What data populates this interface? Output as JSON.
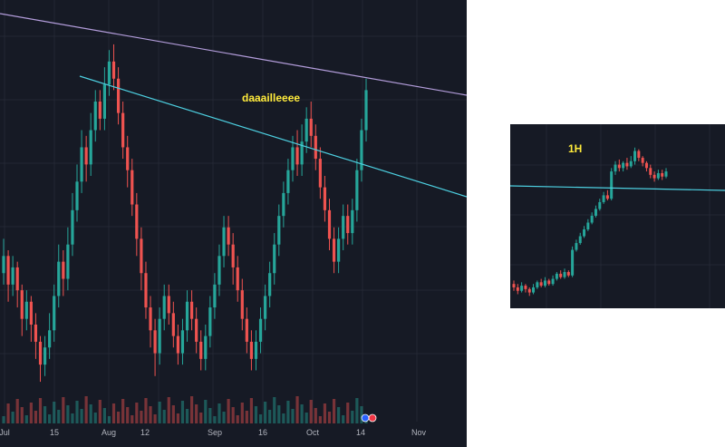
{
  "colors": {
    "background": "#161a25",
    "grid": "#232734",
    "up": "#26a69a",
    "down": "#ef5350",
    "trend_upper": "#b39ddb",
    "trend_lower": "#4dd0e1",
    "annotation": "#ffeb3b",
    "axis_text": "#b2b5be"
  },
  "chart_data": [
    {
      "type": "candlestick",
      "x_tick_labels": [
        "Jul",
        "15",
        "Aug",
        "12",
        "Sep",
        "16",
        "Oct",
        "14",
        "Nov"
      ],
      "annotation": "daaailleeee",
      "grid": true,
      "series": [
        {
          "o": [
            55,
            58
          ],
          "h": [
            52,
            62
          ],
          "l": [
            50,
            65
          ]
        },
        {
          "values": [
            [
              52,
              55,
              50,
              58
            ],
            [
              55,
              50,
              47,
              56
            ],
            [
              50,
              53,
              48,
              55
            ],
            [
              53,
              49,
              46,
              54
            ],
            [
              49,
              44,
              41,
              50
            ],
            [
              44,
              47,
              42,
              49
            ],
            [
              47,
              43,
              40,
              48
            ],
            [
              43,
              40,
              37,
              45
            ],
            [
              40,
              36,
              33,
              41
            ],
            [
              36,
              39,
              34,
              41
            ],
            [
              39,
              42,
              37,
              45
            ],
            [
              42,
              48,
              40,
              50
            ],
            [
              48,
              54,
              46,
              57
            ],
            [
              54,
              51,
              48,
              56
            ],
            [
              51,
              57,
              49,
              60
            ],
            [
              57,
              63,
              55,
              66
            ],
            [
              63,
              68,
              61,
              71
            ],
            [
              68,
              74,
              66,
              77
            ],
            [
              74,
              71,
              68,
              76
            ],
            [
              71,
              77,
              69,
              80
            ],
            [
              77,
              82,
              75,
              84
            ],
            [
              82,
              79,
              77,
              84
            ],
            [
              79,
              85,
              77,
              88
            ],
            [
              85,
              89,
              83,
              91
            ],
            [
              89,
              86,
              84,
              92
            ],
            [
              86,
              80,
              78,
              88
            ],
            [
              80,
              74,
              72,
              82
            ],
            [
              74,
              70,
              67,
              76
            ],
            [
              70,
              64,
              62,
              72
            ],
            [
              64,
              58,
              55,
              66
            ],
            [
              58,
              52,
              49,
              60
            ],
            [
              52,
              46,
              44,
              54
            ],
            [
              46,
              42,
              39,
              48
            ],
            [
              42,
              38,
              34,
              44
            ],
            [
              38,
              44,
              36,
              46
            ],
            [
              44,
              48,
              42,
              50
            ],
            [
              48,
              45,
              43,
              50
            ],
            [
              45,
              41,
              39,
              47
            ],
            [
              41,
              38,
              36,
              43
            ],
            [
              38,
              42,
              36,
              44
            ],
            [
              42,
              47,
              40,
              49
            ],
            [
              47,
              44,
              42,
              49
            ],
            [
              44,
              40,
              38,
              46
            ],
            [
              40,
              37,
              35,
              42
            ],
            [
              37,
              41,
              35,
              43
            ],
            [
              41,
              46,
              39,
              48
            ],
            [
              46,
              50,
              44,
              52
            ],
            [
              50,
              55,
              48,
              57
            ],
            [
              55,
              60,
              53,
              62
            ],
            [
              60,
              57,
              55,
              62
            ],
            [
              57,
              53,
              50,
              59
            ],
            [
              53,
              49,
              47,
              55
            ],
            [
              49,
              44,
              42,
              51
            ],
            [
              44,
              40,
              38,
              46
            ],
            [
              40,
              37,
              35,
              42
            ],
            [
              37,
              40,
              35,
              42
            ],
            [
              40,
              44,
              38,
              46
            ],
            [
              44,
              48,
              42,
              50
            ],
            [
              48,
              52,
              46,
              54
            ],
            [
              52,
              57,
              50,
              59
            ],
            [
              57,
              62,
              55,
              64
            ],
            [
              62,
              66,
              60,
              68
            ],
            [
              66,
              70,
              64,
              72
            ],
            [
              70,
              74,
              68,
              76
            ],
            [
              74,
              71,
              69,
              77
            ],
            [
              71,
              75,
              69,
              78
            ],
            [
              75,
              79,
              73,
              81
            ],
            [
              79,
              76,
              74,
              82
            ],
            [
              76,
              72,
              70,
              78
            ],
            [
              72,
              67,
              65,
              74
            ],
            [
              67,
              63,
              61,
              69
            ],
            [
              63,
              58,
              56,
              65
            ],
            [
              58,
              54,
              52,
              60
            ],
            [
              54,
              58,
              52,
              60
            ],
            [
              58,
              62,
              56,
              64
            ],
            [
              62,
              59,
              57,
              64
            ],
            [
              59,
              63,
              57,
              65
            ],
            [
              63,
              70,
              61,
              72
            ],
            [
              70,
              77,
              68,
              79
            ],
            [
              77,
              84,
              75,
              86
            ]
          ]
        }
      ]
    },
    {
      "type": "candlestick",
      "annotation": "1H",
      "grid": true,
      "values": [
        [
          20,
          18,
          16,
          22
        ],
        [
          18,
          16,
          14,
          20
        ],
        [
          16,
          19,
          15,
          21
        ],
        [
          19,
          17,
          15,
          20
        ],
        [
          17,
          15,
          13,
          18
        ],
        [
          15,
          18,
          14,
          20
        ],
        [
          18,
          21,
          17,
          22
        ],
        [
          21,
          19,
          18,
          23
        ],
        [
          19,
          22,
          18,
          24
        ],
        [
          22,
          20,
          19,
          23
        ],
        [
          20,
          23,
          19,
          25
        ],
        [
          23,
          26,
          22,
          27
        ],
        [
          26,
          24,
          23,
          28
        ],
        [
          24,
          27,
          23,
          29
        ],
        [
          27,
          25,
          24,
          28
        ],
        [
          25,
          40,
          24,
          42
        ],
        [
          40,
          44,
          39,
          46
        ],
        [
          44,
          48,
          43,
          50
        ],
        [
          48,
          52,
          47,
          54
        ],
        [
          52,
          56,
          51,
          58
        ],
        [
          56,
          60,
          55,
          62
        ],
        [
          60,
          64,
          59,
          66
        ],
        [
          64,
          68,
          63,
          70
        ],
        [
          68,
          72,
          67,
          74
        ],
        [
          72,
          70,
          69,
          75
        ],
        [
          70,
          86,
          69,
          88
        ],
        [
          86,
          90,
          84,
          92
        ],
        [
          90,
          88,
          86,
          93
        ],
        [
          88,
          91,
          86,
          92
        ],
        [
          91,
          89,
          87,
          94
        ],
        [
          89,
          92,
          88,
          95
        ],
        [
          92,
          98,
          90,
          100
        ],
        [
          98,
          94,
          92,
          99
        ],
        [
          94,
          91,
          89,
          95
        ],
        [
          91,
          88,
          86,
          92
        ],
        [
          88,
          84,
          82,
          90
        ],
        [
          84,
          82,
          80,
          86
        ],
        [
          82,
          85,
          81,
          87
        ],
        [
          85,
          83,
          81,
          87
        ],
        [
          83,
          86,
          82,
          88
        ]
      ]
    }
  ]
}
